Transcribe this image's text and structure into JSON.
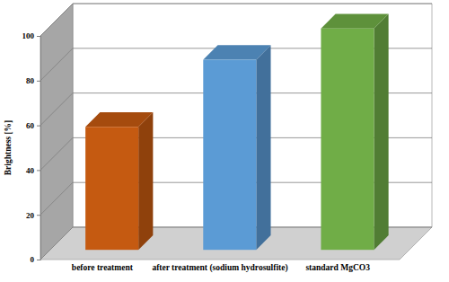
{
  "chart_data": {
    "type": "bar",
    "categories": [
      "before treatment",
      "after treatment (sodium hydrosulfite)",
      "standard MgCO3"
    ],
    "values": [
      55,
      85,
      99
    ],
    "colors": [
      "#c55a11",
      "#5b9bd5",
      "#70ad47"
    ],
    "ylabel": "Brightness [%]",
    "ylim": [
      0,
      100
    ],
    "yticks": [
      0,
      20,
      40,
      60,
      80,
      100
    ],
    "grid": true
  }
}
